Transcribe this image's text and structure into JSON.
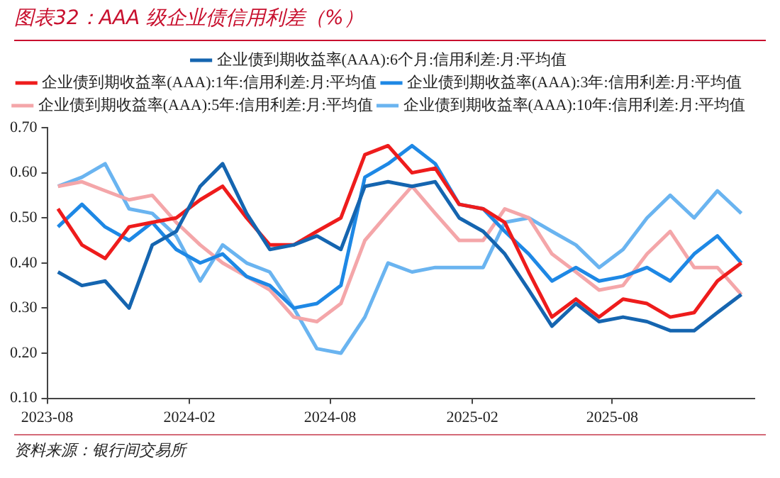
{
  "chart_data": {
    "type": "line",
    "title": "图表32：AAA 级企业债信用利差（%）",
    "annotations": [
      "资料来源：银行间交易所"
    ],
    "x": [
      "2023-08-15",
      "2023-09-15",
      "2023-10-15",
      "2023-11-15",
      "2023-12-15",
      "2024-01-15",
      "2024-02-15",
      "2024-03-15",
      "2024-04-15",
      "2024-05-15",
      "2024-06-15",
      "2024-07-15",
      "2024-08-15",
      "2024-09-15",
      "2024-10-15",
      "2024-11-15",
      "2024-12-15",
      "2025-01-15",
      "2025-02-15",
      "2025-03-15",
      "2025-04-15",
      "2025-05-15",
      "2025-06-15",
      "2025-07-15",
      "2025-08-15",
      "2025-09-15",
      "2025-10-15",
      "2025-11-15",
      "2025-12-15",
      "2026-01-15"
    ],
    "series": [
      {
        "name": "企业债到期收益率(AAA):6个月:信用利差:月:平均值",
        "color": "#1565b0",
        "values": [
          0.38,
          0.35,
          0.36,
          0.3,
          0.44,
          0.47,
          0.57,
          0.62,
          0.51,
          0.43,
          0.44,
          0.46,
          0.43,
          0.57,
          0.58,
          0.57,
          0.58,
          0.5,
          0.47,
          0.42,
          0.34,
          0.26,
          0.31,
          0.27,
          0.28,
          0.27,
          0.25,
          0.25,
          0.29,
          0.33
        ]
      },
      {
        "name": "企业债到期收益率(AAA):1年:信用利差:月:平均值",
        "color": "#ee1c1c",
        "values": [
          0.52,
          0.44,
          0.41,
          0.48,
          0.49,
          0.5,
          0.54,
          0.57,
          0.5,
          0.44,
          0.44,
          0.47,
          0.5,
          0.64,
          0.66,
          0.6,
          0.61,
          0.53,
          0.52,
          0.49,
          0.38,
          0.28,
          0.32,
          0.28,
          0.32,
          0.31,
          0.28,
          0.29,
          0.36,
          0.4
        ]
      },
      {
        "name": "企业债到期收益率(AAA):3年:信用利差:月:平均值",
        "color": "#1e88e5",
        "values": [
          0.48,
          0.53,
          0.48,
          0.45,
          0.49,
          0.43,
          0.4,
          0.42,
          0.37,
          0.35,
          0.3,
          0.31,
          0.35,
          0.59,
          0.62,
          0.66,
          0.62,
          0.53,
          0.52,
          0.47,
          0.42,
          0.36,
          0.39,
          0.36,
          0.37,
          0.39,
          0.36,
          0.42,
          0.46,
          0.4
        ]
      },
      {
        "name": "企业债到期收益率(AAA):5年:信用利差:月:平均值",
        "color": "#f4a6a9",
        "values": [
          0.57,
          0.58,
          0.56,
          0.54,
          0.55,
          0.49,
          0.44,
          0.4,
          0.37,
          0.34,
          0.28,
          0.27,
          0.31,
          0.45,
          0.51,
          0.57,
          0.51,
          0.45,
          0.45,
          0.52,
          0.5,
          0.42,
          0.38,
          0.34,
          0.35,
          0.42,
          0.47,
          0.39,
          0.39,
          0.33
        ]
      },
      {
        "name": "企业债到期收益率(AAA):10年:信用利差:月:平均值",
        "color": "#6ab4f0",
        "values": [
          0.57,
          0.59,
          0.62,
          0.52,
          0.51,
          0.46,
          0.36,
          0.44,
          0.4,
          0.38,
          0.3,
          0.21,
          0.2,
          0.28,
          0.4,
          0.38,
          0.39,
          0.39,
          0.39,
          0.49,
          0.5,
          0.47,
          0.44,
          0.39,
          0.43,
          0.5,
          0.55,
          0.5,
          0.56,
          0.51
        ]
      }
    ],
    "xlim": [
      "2023-08",
      "2026-02"
    ],
    "xticks": [
      "2023-08",
      "2024-02",
      "2024-08",
      "2025-02",
      "2025-08"
    ],
    "ylim": [
      0.1,
      0.7
    ],
    "yticks": [
      {
        "value": 0.1,
        "label": "0.10"
      },
      {
        "value": 0.2,
        "label": "0.20"
      },
      {
        "value": 0.3,
        "label": "0.30"
      },
      {
        "value": 0.4,
        "label": "0.40"
      },
      {
        "value": 0.5,
        "label": "0.50"
      },
      {
        "value": 0.6,
        "label": "0.60"
      },
      {
        "value": 0.7,
        "label": "0.70"
      }
    ],
    "grid": false,
    "legend": "top",
    "marker": "none",
    "line_style": "solid"
  }
}
